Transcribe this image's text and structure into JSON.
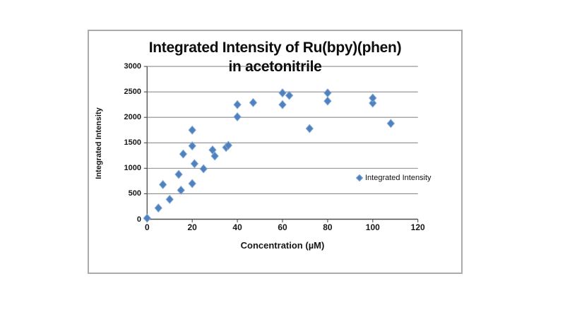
{
  "chart_data": {
    "type": "scatter",
    "title_lines": [
      "Integrated Intensity of Ru(bpy)(phen)",
      "in acetonitrile"
    ],
    "xlabel": "Concentration (µM)",
    "ylabel": "Integrated Intensity",
    "xlim": [
      0,
      120
    ],
    "ylim": [
      0,
      3000
    ],
    "x_ticks": [
      0,
      20,
      40,
      60,
      80,
      100,
      120
    ],
    "y_ticks": [
      0,
      500,
      1000,
      1500,
      2000,
      2500,
      3000
    ],
    "grid": "horizontal-only",
    "legend": {
      "position": "inside-right",
      "entries": [
        "Integrated Intensity"
      ]
    },
    "series": [
      {
        "name": "Integrated Intensity",
        "marker": "diamond",
        "color": "#4F81BD",
        "edge_color": "#7FA6D6",
        "points": [
          [
            0,
            20
          ],
          [
            5,
            220
          ],
          [
            7,
            680
          ],
          [
            10,
            390
          ],
          [
            14,
            880
          ],
          [
            15,
            570
          ],
          [
            16,
            1280
          ],
          [
            20,
            700
          ],
          [
            20,
            1440
          ],
          [
            20,
            1750
          ],
          [
            21,
            1090
          ],
          [
            25,
            990
          ],
          [
            29,
            1360
          ],
          [
            30,
            1240
          ],
          [
            35,
            1410
          ],
          [
            36,
            1450
          ],
          [
            40,
            2010
          ],
          [
            40,
            2250
          ],
          [
            47,
            2290
          ],
          [
            60,
            2250
          ],
          [
            60,
            2480
          ],
          [
            63,
            2430
          ],
          [
            72,
            1780
          ],
          [
            80,
            2320
          ],
          [
            80,
            2480
          ],
          [
            100,
            2280
          ],
          [
            100,
            2380
          ],
          [
            108,
            1880
          ]
        ]
      }
    ]
  },
  "colors": {
    "marker": "#4F81BD",
    "marker_edge": "#7FA6D6",
    "gridline": "#8c8c8c",
    "axis": "#4d4d4d",
    "frame_border": "#ababab",
    "text": "#161616"
  }
}
